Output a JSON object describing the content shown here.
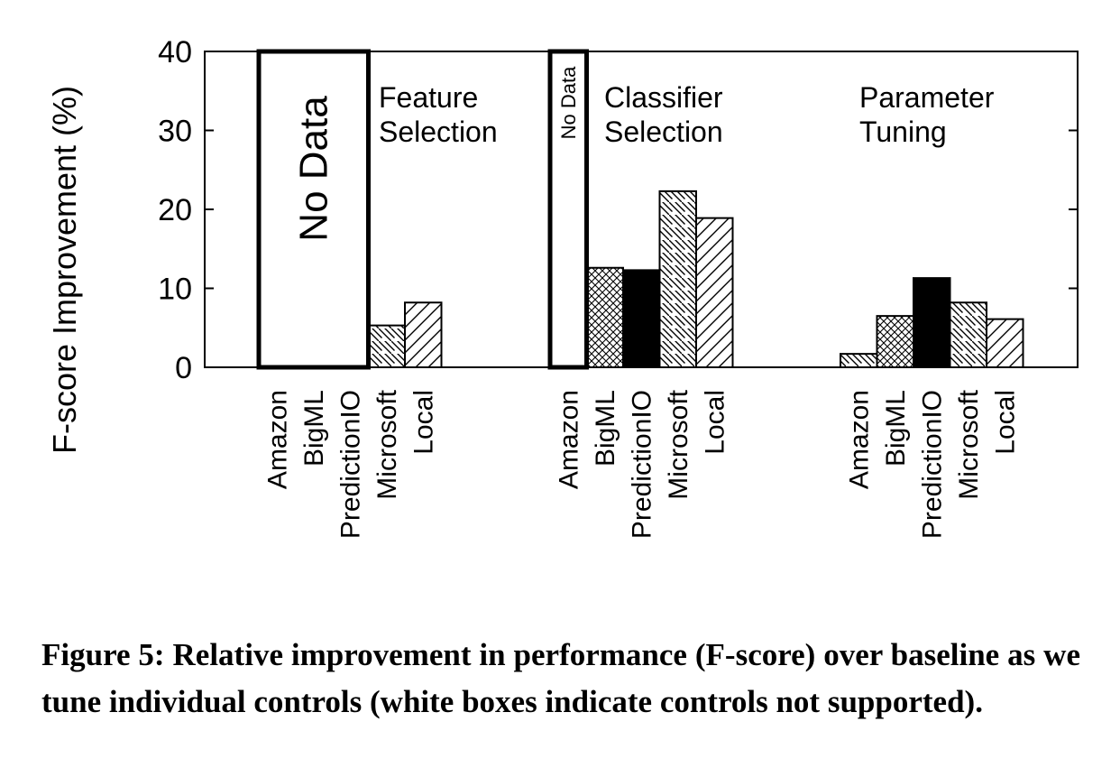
{
  "chart_data": {
    "type": "bar",
    "ylabel": "F-score Improvement (%)",
    "ylim": [
      0,
      40
    ],
    "yticks": [
      0,
      10,
      20,
      30,
      40
    ],
    "categories": [
      "Amazon",
      "BigML",
      "PredictionIO",
      "Microsoft",
      "Local"
    ],
    "groups": [
      {
        "name": "Feature Selection",
        "label_lines": [
          "Feature",
          "Selection"
        ],
        "values": [
          null,
          null,
          null,
          5.3,
          8.2
        ],
        "no_data_label": "No Data",
        "no_data_categories": [
          "Amazon",
          "BigML",
          "PredictionIO"
        ]
      },
      {
        "name": "Classifier Selection",
        "label_lines": [
          "Classifier",
          "Selection"
        ],
        "values": [
          null,
          12.6,
          12.3,
          22.3,
          18.9
        ],
        "no_data_label": "No Data",
        "no_data_categories": [
          "Amazon"
        ]
      },
      {
        "name": "Parameter Tuning",
        "label_lines": [
          "Parameter",
          "Tuning"
        ],
        "values": [
          1.7,
          6.5,
          11.3,
          8.2,
          6.1
        ]
      }
    ],
    "patterns": {
      "Amazon": "diagonal-down",
      "BigML": "crosshatch",
      "PredictionIO": "solid-black",
      "Microsoft": "diagonal-down",
      "Local": "diagonal-up"
    },
    "grid": false,
    "legend": "none"
  },
  "caption": "Figure 5: Relative improvement in performance (F-score) over baseline as we tune individual controls (white boxes indicate controls not supported)."
}
